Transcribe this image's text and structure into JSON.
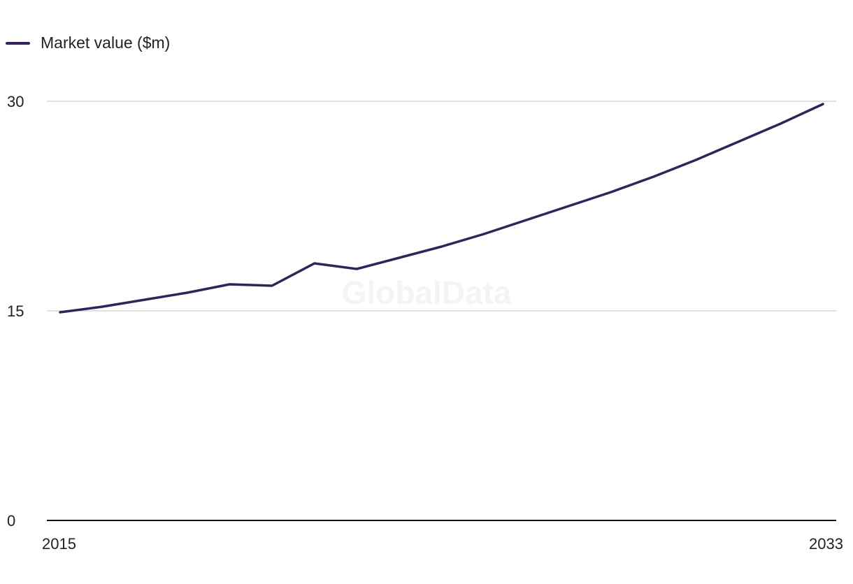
{
  "chart_data": {
    "type": "line",
    "title": "",
    "xlabel": "",
    "ylabel": "",
    "x": [
      2015,
      2016,
      2017,
      2018,
      2019,
      2020,
      2021,
      2022,
      2023,
      2024,
      2025,
      2026,
      2027,
      2028,
      2029,
      2030,
      2031,
      2032,
      2033
    ],
    "x_tick_labels": [
      "2015",
      "2033"
    ],
    "y_ticks": [
      0,
      15,
      30
    ],
    "y_tick_labels": [
      "0",
      "15",
      "30"
    ],
    "ylim": [
      0,
      30
    ],
    "series": [
      {
        "name": "Market value ($m)",
        "color": "#36225a",
        "values": [
          14.9,
          15.3,
          15.8,
          16.3,
          16.9,
          16.8,
          18.4,
          18.0,
          18.8,
          19.6,
          20.5,
          21.5,
          22.5,
          23.5,
          24.6,
          25.8,
          27.1,
          28.4,
          29.8
        ]
      }
    ],
    "legend": {
      "position": "top-left",
      "entries": [
        "Market value ($m)"
      ]
    },
    "grid": true,
    "gridline_color": "#d6d6d6",
    "baseline_color": "#111111",
    "watermark": "GlobalData"
  }
}
